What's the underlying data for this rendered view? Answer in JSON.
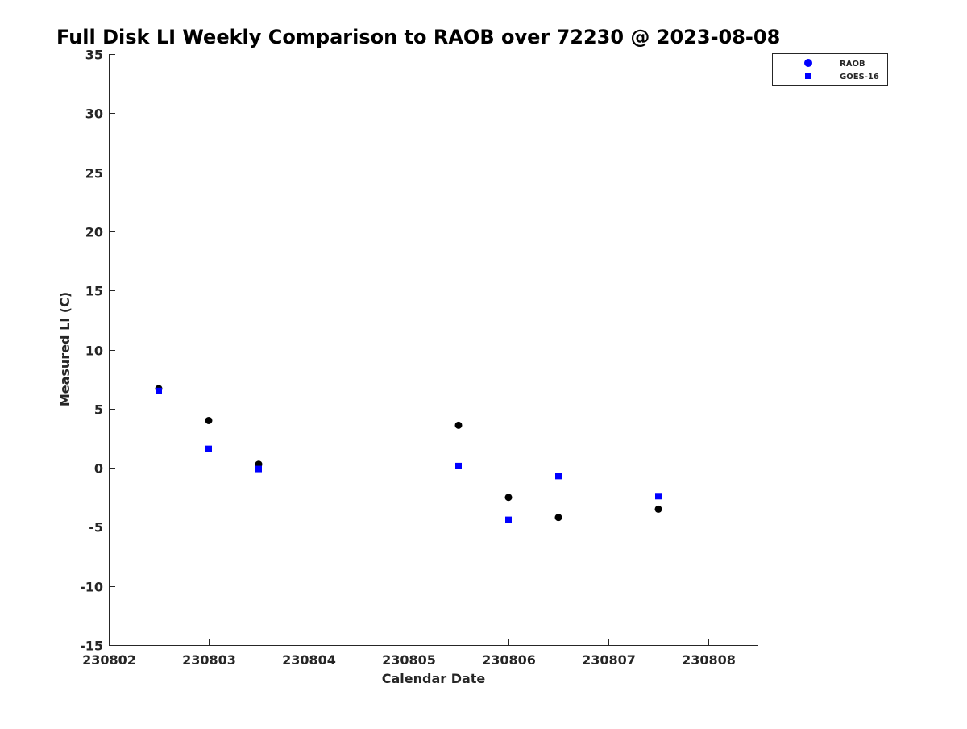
{
  "chart_data": {
    "type": "scatter",
    "title": "Full Disk LI Weekly Comparison to RAOB over 72230 @ 2023-08-08",
    "xlabel": "Calendar Date",
    "ylabel": "Measured LI (C)",
    "xlim": [
      230802,
      230808.5
    ],
    "ylim": [
      -15,
      35
    ],
    "xticks": [
      230802,
      230803,
      230804,
      230805,
      230806,
      230807,
      230808
    ],
    "yticks": [
      -15,
      -10,
      -5,
      0,
      5,
      10,
      15,
      20,
      25,
      30,
      35
    ],
    "grid": false,
    "legend_placement": "top-right",
    "series": [
      {
        "name": "RAOB",
        "marker": "circle",
        "color": "#000000",
        "legend_color": "#0000ff",
        "x": [
          230802.5,
          230803,
          230803.5,
          230805.5,
          230806,
          230806.5,
          230807.5
        ],
        "y": [
          6.7,
          4.0,
          0.3,
          3.6,
          -2.5,
          -4.2,
          -3.5
        ]
      },
      {
        "name": "GOES-16",
        "marker": "square",
        "color": "#0000ff",
        "legend_color": "#0000ff",
        "x": [
          230802.5,
          230803,
          230803.5,
          230805.5,
          230806,
          230806.5,
          230807.5
        ],
        "y": [
          6.5,
          1.6,
          -0.1,
          0.15,
          -4.4,
          -0.7,
          -2.4
        ]
      }
    ]
  }
}
